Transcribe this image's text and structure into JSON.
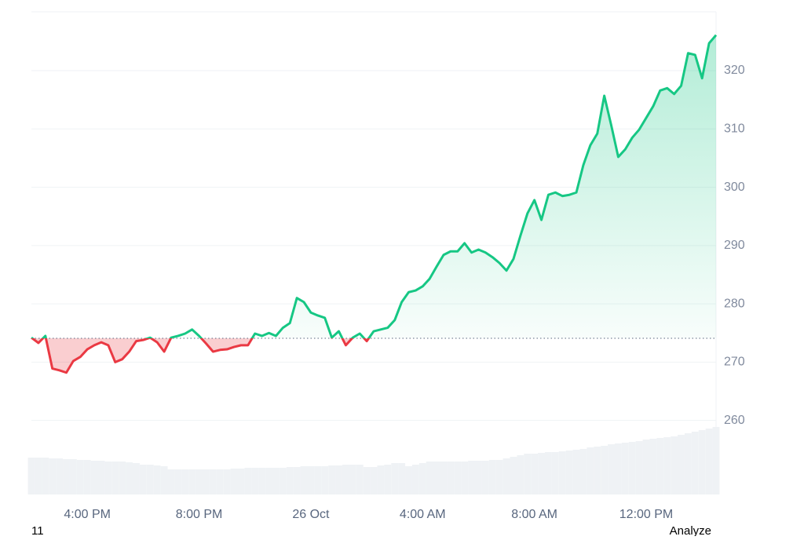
{
  "chart_data": {
    "type": "line",
    "categories": [
      null,
      null,
      null,
      null,
      null,
      null,
      null,
      null,
      "4:00 PM",
      null,
      null,
      null,
      null,
      null,
      null,
      null,
      null,
      null,
      null,
      null,
      null,
      null,
      null,
      null,
      "8:00 PM",
      null,
      null,
      null,
      null,
      null,
      null,
      null,
      null,
      null,
      null,
      null,
      null,
      null,
      null,
      null,
      "26 Oct",
      null,
      null,
      null,
      null,
      null,
      null,
      null,
      null,
      null,
      null,
      null,
      null,
      null,
      null,
      null,
      "4:00 AM",
      null,
      null,
      null,
      null,
      null,
      null,
      null,
      null,
      null,
      null,
      null,
      null,
      null,
      null,
      null,
      "8:00 AM",
      null,
      null,
      null,
      null,
      null,
      null,
      null,
      null,
      null,
      null,
      null,
      null,
      null,
      null,
      null,
      "12:00 PM",
      null,
      null,
      null,
      null,
      null,
      null,
      null,
      null,
      null,
      null
    ],
    "values": [
      274.2,
      273.3,
      274.5,
      268.9,
      268.6,
      268.2,
      270.2,
      270.9,
      272.2,
      272.9,
      273.4,
      272.9,
      270.0,
      270.5,
      271.8,
      273.6,
      273.8,
      274.2,
      273.4,
      271.8,
      274.2,
      274.5,
      274.9,
      275.6,
      274.5,
      273.2,
      271.8,
      272.1,
      272.2,
      272.6,
      272.9,
      272.9,
      274.9,
      274.5,
      275.0,
      274.5,
      275.9,
      276.7,
      281.0,
      280.3,
      278.5,
      278.0,
      277.6,
      274.2,
      275.3,
      272.9,
      274.2,
      274.9,
      273.6,
      275.3,
      275.6,
      275.9,
      277.2,
      280.3,
      282.0,
      282.3,
      283.0,
      284.3,
      286.4,
      288.4,
      289.0,
      289.0,
      290.4,
      288.8,
      289.3,
      288.8,
      288.0,
      287.0,
      285.7,
      287.7,
      291.7,
      295.5,
      297.8,
      294.4,
      298.7,
      299.1,
      298.5,
      298.7,
      299.1,
      303.8,
      307.2,
      309.2,
      315.7,
      310.6,
      305.2,
      306.5,
      308.5,
      309.9,
      311.9,
      313.9,
      316.6,
      317.0,
      316.0,
      317.4,
      323.0,
      322.7,
      318.7,
      324.7,
      326.1
    ],
    "volume": [
      47,
      47,
      47,
      46,
      46,
      45,
      45,
      44,
      44,
      43,
      43,
      42,
      42,
      42,
      41,
      40,
      38,
      38,
      37,
      36,
      32,
      32,
      32,
      32,
      32,
      32,
      32,
      32,
      32,
      33,
      33,
      34,
      34,
      34,
      34,
      34,
      34,
      35,
      35,
      36,
      36,
      36,
      36,
      37,
      37,
      38,
      38,
      38,
      35,
      35,
      37,
      38,
      40,
      40,
      36,
      38,
      40,
      42,
      42,
      42,
      42,
      42,
      42,
      43,
      43,
      43,
      44,
      44,
      46,
      48,
      50,
      52,
      52,
      53,
      54,
      54,
      55,
      56,
      57,
      58,
      60,
      61,
      62,
      64,
      65,
      66,
      67,
      68,
      70,
      71,
      72,
      73,
      74,
      76,
      78,
      80,
      82,
      84,
      86
    ],
    "baseline": 274.1,
    "up_color": "#16c784",
    "down_color": "#ea3943",
    "volume_color": "#eff2f5",
    "ylim": [
      247.3,
      330.1
    ],
    "yticks": [
      260,
      270,
      280,
      290,
      300,
      310,
      320
    ],
    "grid": true
  },
  "ui": {
    "left_text": "11",
    "button": "Analyze"
  }
}
